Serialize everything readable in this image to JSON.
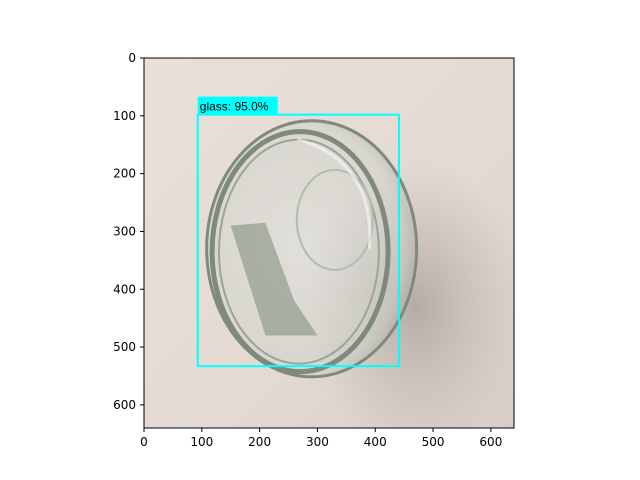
{
  "image": {
    "width": 640,
    "height": 640,
    "background_color": "#e6dcd6",
    "shadow_color": "#b5aba6"
  },
  "axes": {
    "x_ticks": [
      0,
      100,
      200,
      300,
      400,
      500,
      600
    ],
    "y_ticks": [
      0,
      100,
      200,
      300,
      400,
      500,
      600
    ],
    "xlim": [
      0,
      640
    ],
    "ylim": [
      640,
      0
    ],
    "grid": false
  },
  "detection": {
    "label": "glass: 95.0%",
    "box": {
      "x_min": 93,
      "y_min": 98,
      "x_max": 441,
      "y_max": 533
    },
    "box_color": "#00ffff",
    "label_bg_color": "#00ffff"
  },
  "object": {
    "name": "glass-jar",
    "rim_color": "#7d8a7c",
    "glass_tint": "#cfd6cf"
  }
}
